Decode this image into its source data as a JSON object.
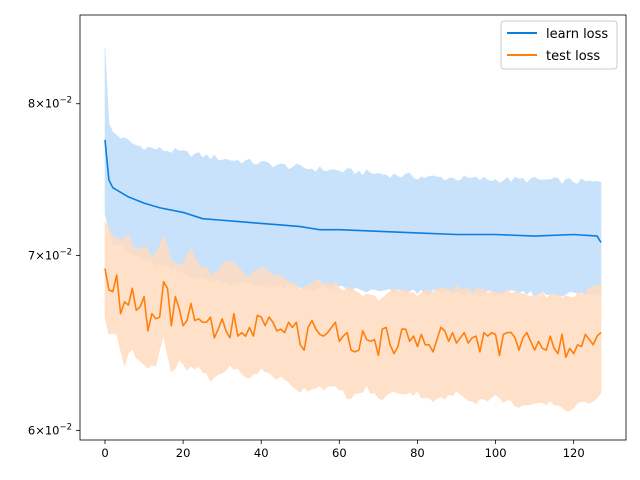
{
  "chart_data": {
    "type": "line",
    "title": "",
    "xlabel": "",
    "ylabel": "",
    "xlim": [
      -6.4,
      133.4
    ],
    "ylim": [
      0.0595,
      0.0865
    ],
    "y_scale": "log",
    "grid": false,
    "legend_position": "top-right",
    "x_ticks": [
      {
        "value": 0,
        "label": "0"
      },
      {
        "value": 20,
        "label": "20"
      },
      {
        "value": 40,
        "label": "40"
      },
      {
        "value": 60,
        "label": "60"
      },
      {
        "value": 80,
        "label": "80"
      },
      {
        "value": 100,
        "label": "100"
      },
      {
        "value": 120,
        "label": "120"
      }
    ],
    "y_ticks": [
      {
        "value": 0.06,
        "mantissa": "6",
        "base": "10",
        "exponent": "−2"
      },
      {
        "value": 0.07,
        "mantissa": "7",
        "base": "10",
        "exponent": "−2"
      },
      {
        "value": 0.08,
        "mantissa": "8",
        "base": "10",
        "exponent": "−2"
      }
    ],
    "series": [
      {
        "name": "learn loss",
        "color": "#0a7ee0",
        "band_color": "#c9e2fb",
        "mean_points": [
          [
            0,
            0.0775
          ],
          [
            1,
            0.0748
          ],
          [
            2,
            0.0743
          ],
          [
            4,
            0.074
          ],
          [
            6,
            0.0737
          ],
          [
            10,
            0.0733
          ],
          [
            14,
            0.073
          ],
          [
            20,
            0.0727
          ],
          [
            25,
            0.0723
          ],
          [
            30,
            0.0722
          ],
          [
            35,
            0.0721
          ],
          [
            40,
            0.072
          ],
          [
            45,
            0.0719
          ],
          [
            50,
            0.0718
          ],
          [
            55,
            0.0716
          ],
          [
            60,
            0.0716
          ],
          [
            70,
            0.0715
          ],
          [
            80,
            0.0714
          ],
          [
            90,
            0.0713
          ],
          [
            100,
            0.0713
          ],
          [
            110,
            0.0712
          ],
          [
            120,
            0.0713
          ],
          [
            126,
            0.0712
          ],
          [
            127,
            0.0708
          ]
        ],
        "upper_points": [
          [
            0,
            0.0842
          ],
          [
            1,
            0.0785
          ],
          [
            2,
            0.078
          ],
          [
            5,
            0.0775
          ],
          [
            8,
            0.0771
          ],
          [
            12,
            0.0769
          ],
          [
            20,
            0.0766
          ],
          [
            30,
            0.0762
          ],
          [
            40,
            0.0759
          ],
          [
            50,
            0.0756
          ],
          [
            60,
            0.0754
          ],
          [
            70,
            0.0752
          ],
          [
            80,
            0.075
          ],
          [
            90,
            0.0749
          ],
          [
            100,
            0.0748
          ],
          [
            110,
            0.0748
          ],
          [
            120,
            0.0747
          ],
          [
            127,
            0.0746
          ]
        ],
        "lower_points": [
          [
            0,
            0.0728
          ],
          [
            1,
            0.0718
          ],
          [
            2,
            0.0708
          ],
          [
            4,
            0.0705
          ],
          [
            6,
            0.0702
          ],
          [
            10,
            0.0697
          ],
          [
            15,
            0.0693
          ],
          [
            20,
            0.0689
          ],
          [
            25,
            0.0686
          ],
          [
            30,
            0.0684
          ],
          [
            35,
            0.0683
          ],
          [
            40,
            0.0682
          ],
          [
            50,
            0.068
          ],
          [
            60,
            0.068
          ],
          [
            70,
            0.0678
          ],
          [
            80,
            0.0678
          ],
          [
            90,
            0.0677
          ],
          [
            100,
            0.0677
          ],
          [
            110,
            0.0677
          ],
          [
            120,
            0.0677
          ],
          [
            127,
            0.0676
          ]
        ]
      },
      {
        "name": "test loss",
        "color": "#ff7f0e",
        "band_color": "#ffdcc0",
        "mean_points": [
          [
            0,
            0.0692
          ],
          [
            1,
            0.0679
          ],
          [
            2,
            0.0678
          ],
          [
            3,
            0.0688
          ],
          [
            4,
            0.0665
          ],
          [
            5,
            0.0672
          ],
          [
            6,
            0.067
          ],
          [
            7,
            0.068
          ],
          [
            8,
            0.0667
          ],
          [
            9,
            0.0669
          ],
          [
            10,
            0.0675
          ],
          [
            11,
            0.0655
          ],
          [
            12,
            0.0665
          ],
          [
            13,
            0.0662
          ],
          [
            14,
            0.0663
          ],
          [
            15,
            0.0684
          ],
          [
            16,
            0.068
          ],
          [
            17,
            0.0658
          ],
          [
            18,
            0.0675
          ],
          [
            19,
            0.0668
          ],
          [
            20,
            0.0658
          ],
          [
            21,
            0.0661
          ],
          [
            22,
            0.0671
          ],
          [
            23,
            0.0661
          ],
          [
            24,
            0.0662
          ],
          [
            25,
            0.066
          ],
          [
            26,
            0.066
          ],
          [
            27,
            0.0663
          ],
          [
            28,
            0.0651
          ],
          [
            29,
            0.0656
          ],
          [
            30,
            0.0662
          ],
          [
            31,
            0.0655
          ],
          [
            32,
            0.0651
          ],
          [
            33,
            0.0665
          ],
          [
            34,
            0.0652
          ],
          [
            35,
            0.0654
          ],
          [
            36,
            0.0652
          ],
          [
            37,
            0.0657
          ],
          [
            38,
            0.0652
          ],
          [
            39,
            0.0664
          ],
          [
            40,
            0.0663
          ],
          [
            41,
            0.0658
          ],
          [
            42,
            0.0663
          ],
          [
            43,
            0.066
          ],
          [
            44,
            0.0655
          ],
          [
            45,
            0.0656
          ],
          [
            46,
            0.0654
          ],
          [
            47,
            0.066
          ],
          [
            48,
            0.0657
          ],
          [
            49,
            0.066
          ],
          [
            50,
            0.0647
          ],
          [
            51,
            0.0644
          ],
          [
            52,
            0.0657
          ],
          [
            53,
            0.0661
          ],
          [
            54,
            0.0656
          ],
          [
            55,
            0.0653
          ],
          [
            56,
            0.0652
          ],
          [
            57,
            0.0654
          ],
          [
            58,
            0.0657
          ],
          [
            59,
            0.066
          ],
          [
            60,
            0.0649
          ],
          [
            61,
            0.0652
          ],
          [
            62,
            0.0654
          ],
          [
            63,
            0.0644
          ],
          [
            64,
            0.0643
          ],
          [
            65,
            0.0644
          ],
          [
            66,
            0.0655
          ],
          [
            67,
            0.065
          ],
          [
            68,
            0.0649
          ],
          [
            69,
            0.065
          ],
          [
            70,
            0.0641
          ],
          [
            71,
            0.0656
          ],
          [
            72,
            0.0657
          ],
          [
            73,
            0.0647
          ],
          [
            74,
            0.0642
          ],
          [
            75,
            0.0646
          ],
          [
            76,
            0.0656
          ],
          [
            77,
            0.0656
          ],
          [
            78,
            0.0649
          ],
          [
            79,
            0.0652
          ],
          [
            80,
            0.0646
          ],
          [
            81,
            0.0653
          ],
          [
            82,
            0.0647
          ],
          [
            83,
            0.0647
          ],
          [
            84,
            0.0643
          ],
          [
            85,
            0.065
          ],
          [
            86,
            0.0657
          ],
          [
            87,
            0.0655
          ],
          [
            88,
            0.0649
          ],
          [
            89,
            0.0654
          ],
          [
            90,
            0.0648
          ],
          [
            91,
            0.0651
          ],
          [
            92,
            0.0654
          ],
          [
            93,
            0.0648
          ],
          [
            94,
            0.0651
          ],
          [
            95,
            0.0652
          ],
          [
            96,
            0.0643
          ],
          [
            97,
            0.0654
          ],
          [
            98,
            0.0652
          ],
          [
            99,
            0.0654
          ],
          [
            100,
            0.0653
          ],
          [
            101,
            0.0641
          ],
          [
            102,
            0.0653
          ],
          [
            103,
            0.0654
          ],
          [
            104,
            0.0654
          ],
          [
            105,
            0.0651
          ],
          [
            106,
            0.0644
          ],
          [
            107,
            0.0651
          ],
          [
            108,
            0.0654
          ],
          [
            109,
            0.0649
          ],
          [
            110,
            0.0644
          ],
          [
            111,
            0.0649
          ],
          [
            112,
            0.0645
          ],
          [
            113,
            0.0644
          ],
          [
            114,
            0.0652
          ],
          [
            115,
            0.0645
          ],
          [
            116,
            0.0642
          ],
          [
            117,
            0.0653
          ],
          [
            118,
            0.064
          ],
          [
            119,
            0.0645
          ],
          [
            120,
            0.0642
          ],
          [
            121,
            0.0647
          ],
          [
            122,
            0.0646
          ],
          [
            123,
            0.0653
          ],
          [
            124,
            0.065
          ],
          [
            125,
            0.0647
          ],
          [
            126,
            0.0652
          ],
          [
            127,
            0.0654
          ]
        ],
        "upper_points": [
          [
            0,
            0.0722
          ],
          [
            2,
            0.0712
          ],
          [
            4,
            0.0708
          ],
          [
            6,
            0.0712
          ],
          [
            8,
            0.0703
          ],
          [
            10,
            0.0707
          ],
          [
            12,
            0.0698
          ],
          [
            15,
            0.0713
          ],
          [
            17,
            0.0697
          ],
          [
            20,
            0.0696
          ],
          [
            22,
            0.0703
          ],
          [
            25,
            0.0693
          ],
          [
            28,
            0.0688
          ],
          [
            30,
            0.0694
          ],
          [
            33,
            0.0697
          ],
          [
            36,
            0.0686
          ],
          [
            40,
            0.0693
          ],
          [
            45,
            0.0688
          ],
          [
            50,
            0.068
          ],
          [
            55,
            0.0684
          ],
          [
            60,
            0.0681
          ],
          [
            65,
            0.0676
          ],
          [
            70,
            0.0674
          ],
          [
            75,
            0.0679
          ],
          [
            80,
            0.0677
          ],
          [
            85,
            0.0679
          ],
          [
            90,
            0.068
          ],
          [
            95,
            0.0678
          ],
          [
            100,
            0.0679
          ],
          [
            105,
            0.0677
          ],
          [
            110,
            0.0676
          ],
          [
            115,
            0.0676
          ],
          [
            120,
            0.0675
          ],
          [
            127,
            0.0682
          ]
        ],
        "lower_points": [
          [
            0,
            0.0664
          ],
          [
            1,
            0.0652
          ],
          [
            3,
            0.0655
          ],
          [
            5,
            0.0636
          ],
          [
            7,
            0.0645
          ],
          [
            9,
            0.0638
          ],
          [
            11,
            0.0633
          ],
          [
            13,
            0.0637
          ],
          [
            15,
            0.0653
          ],
          [
            17,
            0.0632
          ],
          [
            19,
            0.0637
          ],
          [
            21,
            0.0633
          ],
          [
            24,
            0.0634
          ],
          [
            27,
            0.0627
          ],
          [
            30,
            0.0632
          ],
          [
            33,
            0.0635
          ],
          [
            36,
            0.0628
          ],
          [
            40,
            0.0633
          ],
          [
            45,
            0.0628
          ],
          [
            50,
            0.0622
          ],
          [
            55,
            0.0624
          ],
          [
            60,
            0.0622
          ],
          [
            63,
            0.0617
          ],
          [
            67,
            0.0623
          ],
          [
            70,
            0.0617
          ],
          [
            75,
            0.0621
          ],
          [
            80,
            0.062
          ],
          [
            85,
            0.0616
          ],
          [
            90,
            0.062
          ],
          [
            95,
            0.0616
          ],
          [
            100,
            0.0618
          ],
          [
            105,
            0.0614
          ],
          [
            110,
            0.0613
          ],
          [
            115,
            0.0615
          ],
          [
            118,
            0.0611
          ],
          [
            122,
            0.0614
          ],
          [
            126,
            0.0618
          ],
          [
            127,
            0.0622
          ]
        ]
      }
    ]
  }
}
